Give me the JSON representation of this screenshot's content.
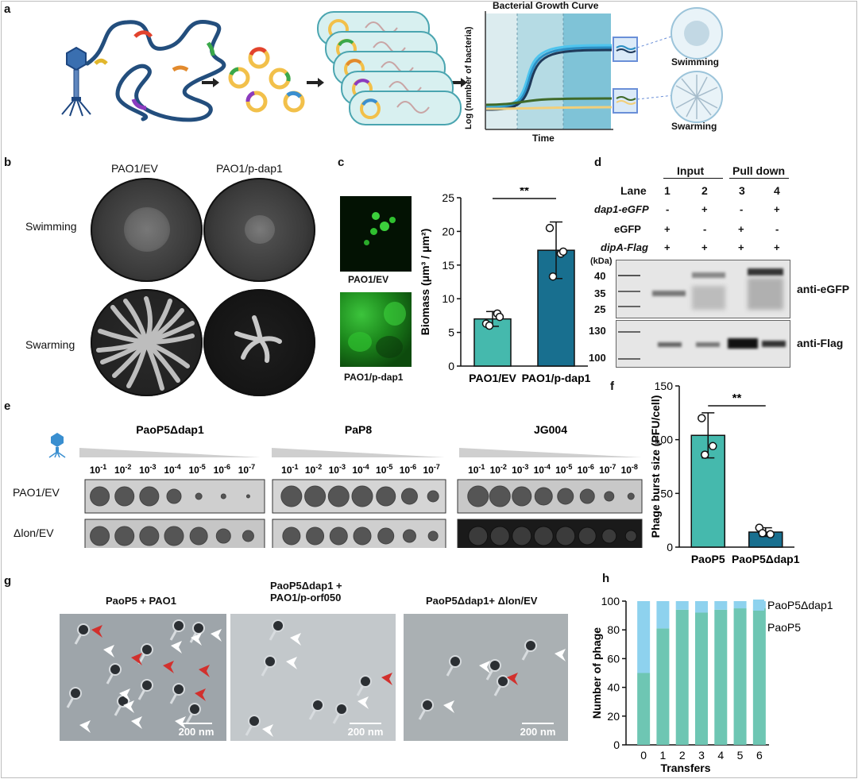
{
  "panels": {
    "a": {
      "label": "a",
      "growth_title": "Bacterial Growth Curve",
      "y_axis": "Log (number of bacteria)",
      "x_axis": "Time",
      "swimming": "Swimming",
      "swarming": "Swarming"
    },
    "b": {
      "label": "b",
      "col1": "PAO1/EV",
      "col2": "PAO1/p-dap1",
      "row1": "Swimming",
      "row2": "Swarming"
    },
    "c": {
      "label": "c",
      "img1": "PAO1/EV",
      "img2": "PAO1/p-dap1",
      "sig": "**"
    },
    "d": {
      "label": "d",
      "input": "Input",
      "pulldown": "Pull down",
      "lane": "Lane",
      "lanes": [
        "1",
        "2",
        "3",
        "4"
      ],
      "rows": [
        {
          "name": "dap1-eGFP",
          "vals": [
            "-",
            "+",
            "-",
            "+"
          ]
        },
        {
          "name": "eGFP",
          "vals": [
            "+",
            "-",
            "+",
            "-"
          ]
        },
        {
          "name": "dipA-Flag",
          "vals": [
            "+",
            "+",
            "+",
            "+"
          ]
        }
      ],
      "kda": "(kDa)",
      "markers_top": [
        "40",
        "35",
        "25"
      ],
      "markers_bottom": [
        "130",
        "100"
      ],
      "ab1": "anti-eGFP",
      "ab2": "anti-Flag"
    },
    "e": {
      "label": "e",
      "groups": [
        {
          "name": "PaoP5Δdap1",
          "dil": [
            "10-1",
            "10-2",
            "10-3",
            "10-4",
            "10-5",
            "10-6",
            "10-7"
          ]
        },
        {
          "name": "PaP8",
          "dil": [
            "10-1",
            "10-2",
            "10-3",
            "10-4",
            "10-5",
            "10-6",
            "10-7"
          ]
        },
        {
          "name": "JG004",
          "dil": [
            "10-1",
            "10-2",
            "10-3",
            "10-4",
            "10-5",
            "10-6",
            "10-7",
            "10-8"
          ]
        }
      ],
      "rows": [
        "PAO1/EV",
        "Δlon/EV"
      ]
    },
    "f": {
      "label": "f",
      "sig": "**"
    },
    "g": {
      "label": "g",
      "titles": [
        "PaoP5 + PAO1",
        "PaoP5Δdap1 + PAO1/p-orf050",
        "PaoP5Δdap1+ Δlon/EV"
      ],
      "scale": "200 nm"
    },
    "h": {
      "label": "h"
    }
  },
  "chart_data": [
    {
      "panel": "c",
      "type": "bar",
      "categories": [
        "PAO1/EV",
        "PAO1/p-dap1"
      ],
      "values": [
        7.0,
        17.2
      ],
      "errors": [
        1.1,
        4.2
      ],
      "points": [
        [
          6.3,
          7.8,
          6.0,
          7.3
        ],
        [
          20.5,
          16.7,
          13.3,
          17.0
        ]
      ],
      "ylabel": "Biomass (μm³ / μm²)",
      "ylim": [
        0,
        25
      ],
      "yticks": [
        0,
        5,
        10,
        15,
        20,
        25
      ],
      "colors": [
        "#45b9ad",
        "#186f8f"
      ]
    },
    {
      "panel": "f",
      "type": "bar",
      "categories": [
        "PaoP5",
        "PaoP5Δdap1"
      ],
      "values": [
        104,
        14
      ],
      "errors": [
        21,
        4
      ],
      "points": [
        [
          120,
          94,
          86
        ],
        [
          18,
          12,
          13
        ]
      ],
      "ylabel": "Phage burst size (PFU/cell)",
      "ylim": [
        0,
        150
      ],
      "yticks": [
        0,
        50,
        100,
        150
      ],
      "colors": [
        "#45b9ad",
        "#186f8f"
      ]
    },
    {
      "panel": "h",
      "type": "bar",
      "stacked": true,
      "categories": [
        "0",
        "1",
        "2",
        "3",
        "4",
        "5",
        "6"
      ],
      "series": [
        {
          "name": "PaoP5",
          "values": [
            50,
            81,
            94,
            92,
            94,
            95,
            95
          ],
          "color": "#6ec6b3"
        },
        {
          "name": "PaoP5Δdap1",
          "values": [
            50,
            19,
            6,
            8,
            6,
            5,
            5
          ],
          "color": "#8ed2ee"
        }
      ],
      "xlabel": "Transfers",
      "ylabel": "Number of phage",
      "ylim": [
        0,
        100
      ],
      "yticks": [
        0,
        20,
        40,
        60,
        80,
        100
      ]
    }
  ]
}
